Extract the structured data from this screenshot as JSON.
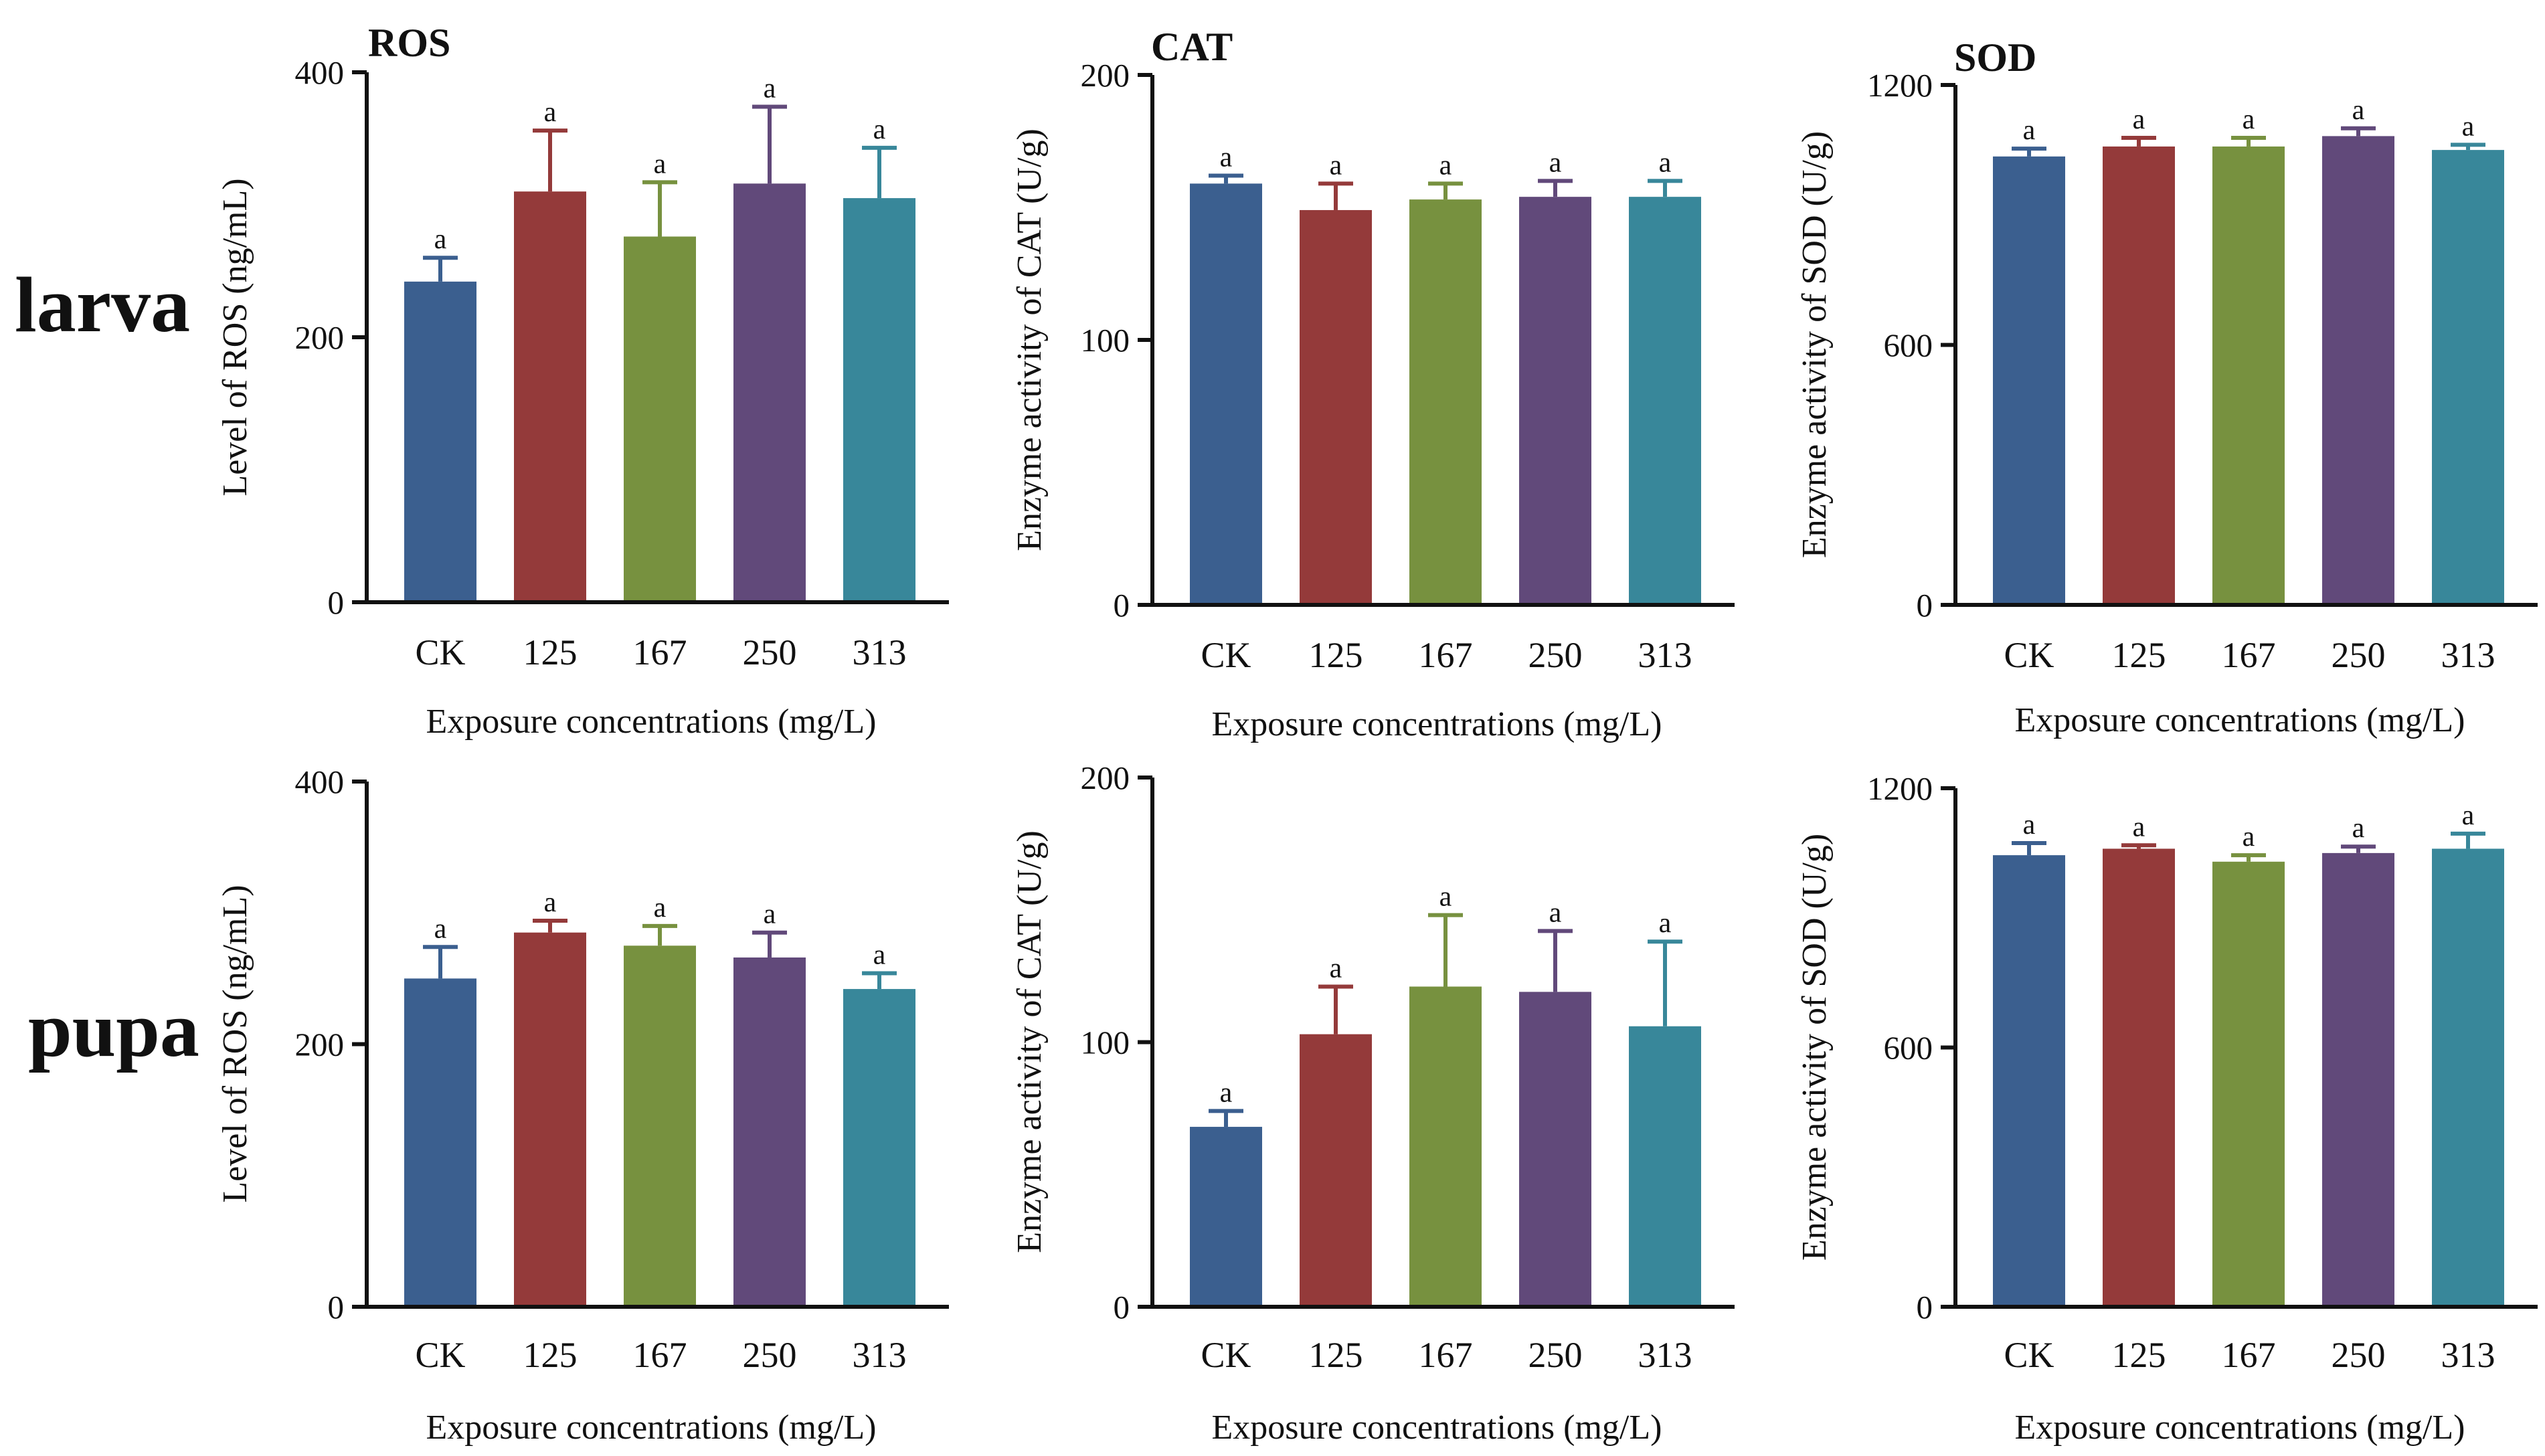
{
  "figure": {
    "row_labels": [
      "larva",
      "pupa"
    ]
  },
  "colors": [
    "#3b5f8f",
    "#943a3a",
    "#77913f",
    "#61497a",
    "#38879a"
  ],
  "chart_data": [
    {
      "type": "bar",
      "title": "ROS",
      "row": "larva",
      "categories": [
        "CK",
        "125",
        "167",
        "250",
        "313"
      ],
      "values": [
        242,
        310,
        276,
        316,
        305
      ],
      "errors": [
        18,
        46,
        41,
        58,
        38
      ],
      "significance": [
        "a",
        "a",
        "a",
        "a",
        "a"
      ],
      "xlabel": "Exposure concentrations (mg/L)",
      "ylabel": "Level of ROS (ng/mL)",
      "ylim": [
        0,
        400
      ],
      "yticks": [
        0,
        200,
        400
      ],
      "grid": false
    },
    {
      "type": "bar",
      "title": "CAT",
      "row": "larva",
      "categories": [
        "CK",
        "125",
        "167",
        "250",
        "313"
      ],
      "values": [
        159,
        149,
        153,
        154,
        154
      ],
      "errors": [
        3,
        10,
        6,
        6,
        6
      ],
      "significance": [
        "a",
        "a",
        "a",
        "a",
        "a"
      ],
      "xlabel": "Exposure concentrations (mg/L)",
      "ylabel": "Enzyme activity of CAT (U/g)",
      "ylim": [
        0,
        200
      ],
      "yticks": [
        0,
        100,
        200
      ],
      "grid": false
    },
    {
      "type": "bar",
      "title": "SOD",
      "row": "larva",
      "categories": [
        "CK",
        "125",
        "167",
        "250",
        "313"
      ],
      "values": [
        1035,
        1058,
        1058,
        1082,
        1050
      ],
      "errors": [
        18,
        20,
        20,
        18,
        12
      ],
      "significance": [
        "a",
        "a",
        "a",
        "a",
        "a"
      ],
      "xlabel": "Exposure concentrations (mg/L)",
      "ylabel": "Enzyme activity of SOD (U/g)",
      "ylim": [
        0,
        1200
      ],
      "yticks": [
        0,
        600,
        1200
      ],
      "grid": false
    },
    {
      "type": "bar",
      "row": "pupa",
      "categories": [
        "CK",
        "125",
        "167",
        "250",
        "313"
      ],
      "values": [
        250,
        285,
        275,
        266,
        242
      ],
      "errors": [
        24,
        9,
        15,
        19,
        12
      ],
      "significance": [
        "a",
        "a",
        "a",
        "a",
        "a"
      ],
      "xlabel": "Exposure concentrations (mg/L)",
      "ylabel": "Level of ROS (ng/mL)",
      "ylim": [
        0,
        400
      ],
      "yticks": [
        0,
        200,
        400
      ],
      "grid": false
    },
    {
      "type": "bar",
      "row": "pupa",
      "categories": [
        "CK",
        "125",
        "167",
        "250",
        "313"
      ],
      "values": [
        68,
        103,
        121,
        119,
        106
      ],
      "errors": [
        6,
        18,
        27,
        23,
        32
      ],
      "significance": [
        "a",
        "a",
        "a",
        "a",
        "a"
      ],
      "xlabel": "Exposure concentrations (mg/L)",
      "ylabel": "Enzyme activity of CAT (U/g)",
      "ylim": [
        0,
        200
      ],
      "yticks": [
        0,
        100,
        200
      ],
      "grid": false
    },
    {
      "type": "bar",
      "row": "pupa",
      "categories": [
        "CK",
        "125",
        "167",
        "250",
        "313"
      ],
      "values": [
        1045,
        1060,
        1030,
        1050,
        1060
      ],
      "errors": [
        28,
        8,
        15,
        15,
        35
      ],
      "significance": [
        "a",
        "a",
        "a",
        "a",
        "a"
      ],
      "xlabel": "Exposure concentrations (mg/L)",
      "ylabel": "Enzyme activity of SOD (U/g)",
      "ylim": [
        0,
        1200
      ],
      "yticks": [
        0,
        600,
        1200
      ],
      "grid": false
    }
  ]
}
